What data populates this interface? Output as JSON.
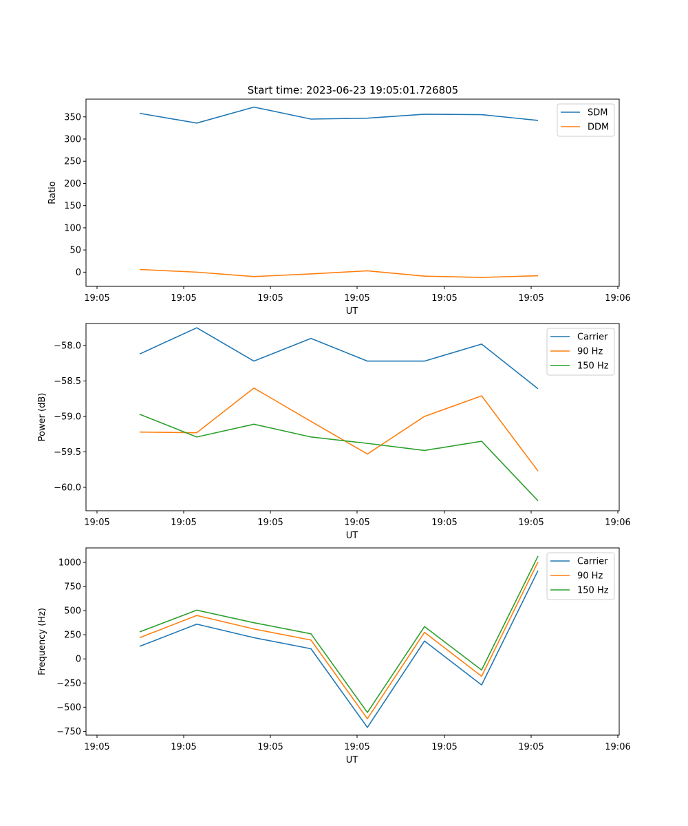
{
  "figure_title": "Start time: 2023-06-23 19:05:01.726805",
  "colors": {
    "blue": "#1f77b4",
    "orange": "#ff7f0e",
    "green": "#2ca02c"
  },
  "chart_data": [
    {
      "type": "line",
      "xlabel": "UT",
      "ylabel": "Ratio",
      "xticks": [
        "19:05",
        "19:05",
        "19:05",
        "19:05",
        "19:05",
        "19:05"
      ],
      "last_xtick": "19:06",
      "yticks": [
        0,
        50,
        100,
        150,
        200,
        250,
        300,
        350
      ],
      "ylim": [
        -32,
        390
      ],
      "legend": "top-right",
      "series": [
        {
          "name": "SDM",
          "color": "#1f77b4",
          "values": [
            358,
            336,
            372,
            345,
            347,
            356,
            355,
            342
          ]
        },
        {
          "name": "DDM",
          "color": "#ff7f0e",
          "values": [
            6,
            0,
            -10,
            -4,
            3,
            -9,
            -12,
            -8
          ]
        }
      ]
    },
    {
      "type": "line",
      "xlabel": "UT",
      "ylabel": "Power (dB)",
      "xticks": [
        "19:05",
        "19:05",
        "19:05",
        "19:05",
        "19:05",
        "19:05"
      ],
      "last_xtick": "19:06",
      "yticks": [
        -60.0,
        -59.5,
        -59.0,
        -58.5,
        -58.0
      ],
      "ylim": [
        -60.33,
        -57.69
      ],
      "legend": "top-right",
      "series": [
        {
          "name": "Carrier",
          "color": "#1f77b4",
          "values": [
            -58.12,
            -57.75,
            -58.22,
            -57.9,
            -58.22,
            -58.22,
            -57.98,
            -58.61
          ]
        },
        {
          "name": "90 Hz",
          "color": "#ff7f0e",
          "values": [
            -59.22,
            -59.23,
            -58.6,
            -59.07,
            -59.53,
            -59.0,
            -58.71,
            -59.77
          ]
        },
        {
          "name": "150 Hz",
          "color": "#2ca02c",
          "values": [
            -58.97,
            -59.29,
            -59.11,
            -59.29,
            -59.38,
            -59.48,
            -59.35,
            -60.19
          ]
        }
      ]
    },
    {
      "type": "line",
      "xlabel": "UT",
      "ylabel": "Frequency (Hz)",
      "xticks": [
        "19:05",
        "19:05",
        "19:05",
        "19:05",
        "19:05",
        "19:05"
      ],
      "last_xtick": "19:06",
      "yticks": [
        -750,
        -500,
        -250,
        0,
        250,
        500,
        750,
        1000
      ],
      "ylim": [
        -790,
        1150
      ],
      "legend": "top-right",
      "series": [
        {
          "name": "Carrier",
          "color": "#1f77b4",
          "values": [
            130,
            360,
            220,
            105,
            -710,
            185,
            -270,
            915
          ]
        },
        {
          "name": "90 Hz",
          "color": "#ff7f0e",
          "values": [
            220,
            450,
            310,
            195,
            -620,
            275,
            -180,
            1005
          ]
        },
        {
          "name": "150 Hz",
          "color": "#2ca02c",
          "values": [
            280,
            505,
            375,
            260,
            -555,
            335,
            -115,
            1065
          ]
        }
      ]
    }
  ]
}
